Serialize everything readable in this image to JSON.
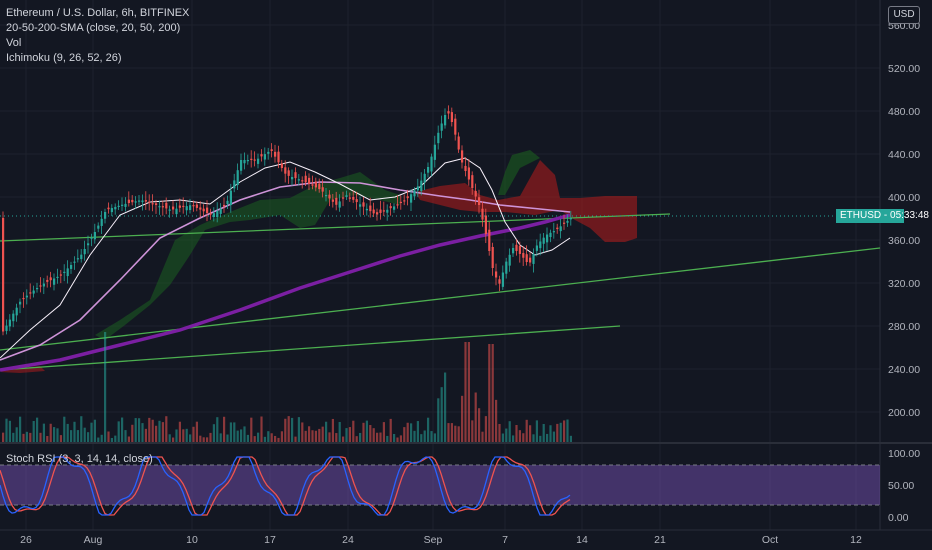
{
  "legend": {
    "symbol": "Ethereum / U.S. Dollar, 6h, BITFINEX",
    "sma": "20-50-200-SMA (close, 20, 50, 200)",
    "vol": "Vol",
    "ichimoku": "Ichimoku (9, 26, 52, 26)"
  },
  "rsi_legend": "Stoch RSI (3, 3, 14, 14, close)",
  "currency_button": "USD",
  "price_tag": {
    "symbol": "ETHUSD",
    "countdown": "05:33:48",
    "color": "#26a69a"
  },
  "x_axis_labels": [
    "26",
    "Aug",
    "10",
    "17",
    "24",
    "Sep",
    "7",
    "14",
    "21",
    "Oct",
    "12"
  ],
  "price_axis_labels": [
    "560.00",
    "520.00",
    "480.00",
    "440.00",
    "400.00",
    "360.00",
    "320.00",
    "280.00",
    "240.00",
    "200.00"
  ],
  "rsi_axis_labels": [
    "100.00",
    "50.00",
    "0.00"
  ],
  "colors": {
    "background": "#131722",
    "up": "#26a69a",
    "down": "#ef5350",
    "sma20": "#e1bee7",
    "sma50": "#ce93d8",
    "sma200": "#7b1fa2",
    "trendline": "#4caf50",
    "rsi_k": "#2962ff",
    "rsi_d": "#ef5350",
    "rsi_band": "#7e57c2"
  }
}
